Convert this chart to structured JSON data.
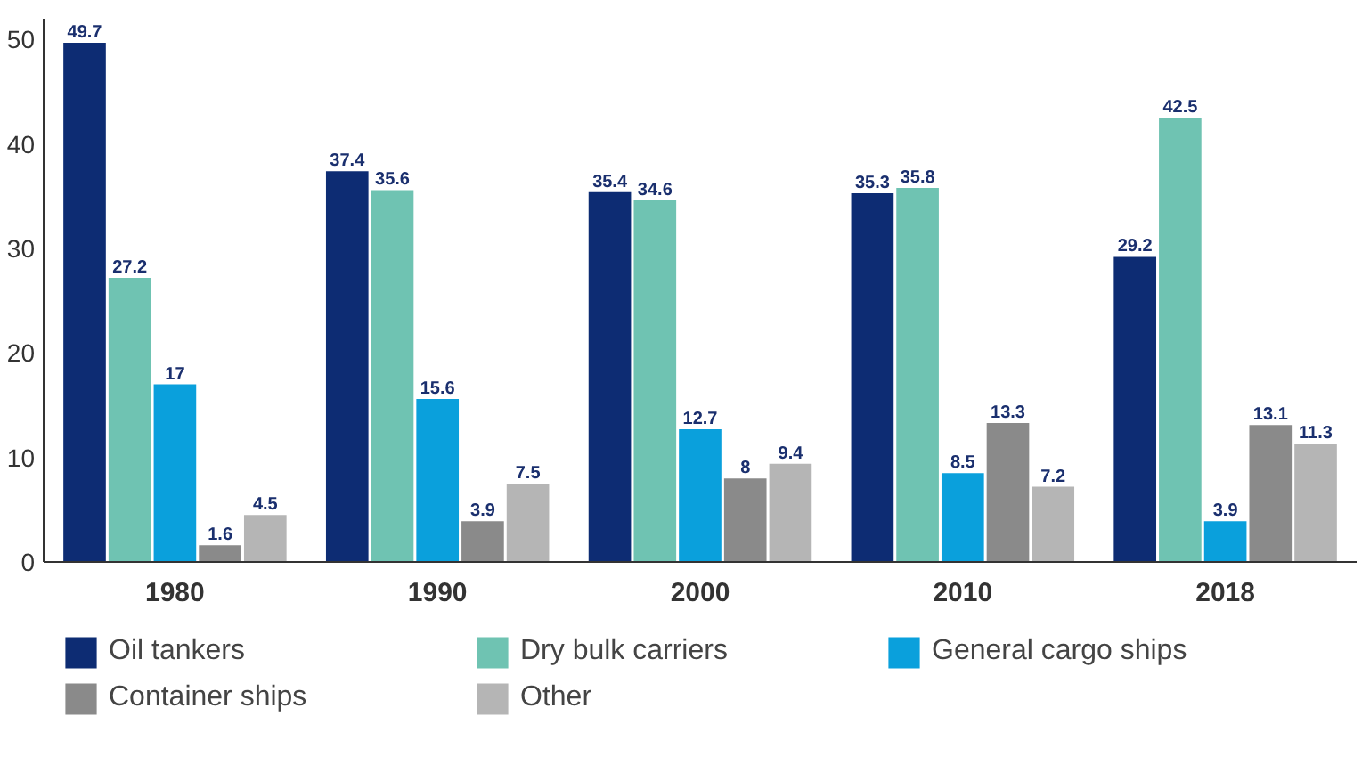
{
  "chart_data": {
    "type": "bar",
    "categories": [
      "1980",
      "1990",
      "2000",
      "2010",
      "2018"
    ],
    "series": [
      {
        "name": "Oil tankers",
        "color": "#0d2c73",
        "values": [
          49.7,
          37.4,
          35.4,
          35.3,
          29.2
        ]
      },
      {
        "name": "Dry bulk carriers",
        "color": "#6fc3b2",
        "values": [
          27.2,
          35.6,
          34.6,
          35.8,
          42.5
        ]
      },
      {
        "name": "General cargo ships",
        "color": "#0aa0dc",
        "values": [
          17,
          15.6,
          12.7,
          8.5,
          3.9
        ]
      },
      {
        "name": "Container ships",
        "color": "#8a8a8a",
        "values": [
          1.6,
          3.9,
          8,
          13.3,
          13.1
        ]
      },
      {
        "name": "Other",
        "color": "#b5b5b5",
        "values": [
          4.5,
          7.5,
          9.4,
          7.2,
          11.3
        ]
      }
    ],
    "ylim": [
      0,
      52
    ],
    "yticks": [
      0,
      10,
      20,
      30,
      40,
      50
    ],
    "grid": false,
    "data_labels": true,
    "legend": "bottom"
  }
}
